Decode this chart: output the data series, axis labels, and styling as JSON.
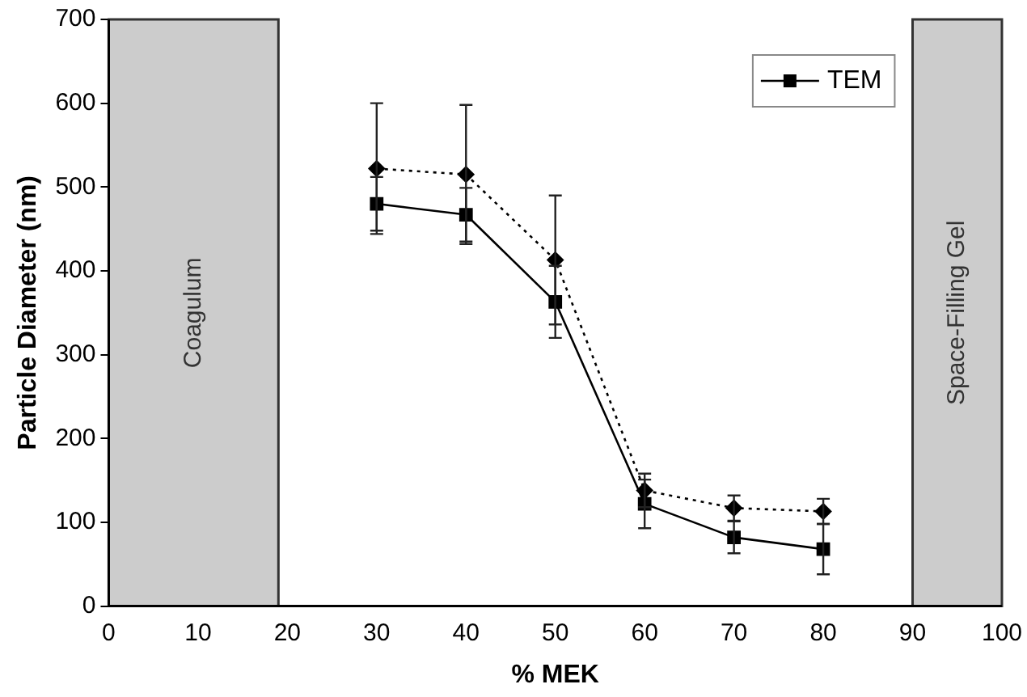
{
  "chart_data": {
    "type": "line",
    "xlabel": "% MEK",
    "ylabel": "Particle Diameter (nm)",
    "x": [
      30,
      40,
      50,
      60,
      70,
      80
    ],
    "series": [
      {
        "color": "#000000",
        "values": [
          522,
          515,
          413,
          138,
          117,
          113
        ],
        "errors": [
          78,
          83,
          77,
          20,
          15,
          15
        ],
        "marker": "diamond",
        "line_style": "dotted"
      },
      {
        "name": "TEM",
        "color": "#000000",
        "values": [
          480,
          467,
          363,
          122,
          82,
          68
        ],
        "errors": [
          32,
          32,
          43,
          29,
          19,
          30
        ],
        "marker": "square",
        "line_style": "solid"
      }
    ],
    "xlim": [
      0,
      100
    ],
    "xticks": [
      0,
      10,
      20,
      30,
      40,
      50,
      60,
      70,
      80,
      90,
      100
    ],
    "ylim": [
      0,
      700
    ],
    "yticks": [
      0,
      100,
      200,
      300,
      400,
      500,
      600,
      700
    ],
    "bands": [
      {
        "axis": "x",
        "from": 0,
        "to": 19,
        "label": "Coagulum",
        "color": "#cccccc"
      },
      {
        "axis": "x",
        "from": 90,
        "to": 100,
        "label": "Space-Filling Gel",
        "color": "#cccccc"
      }
    ],
    "grid": false,
    "legend": "top right"
  }
}
